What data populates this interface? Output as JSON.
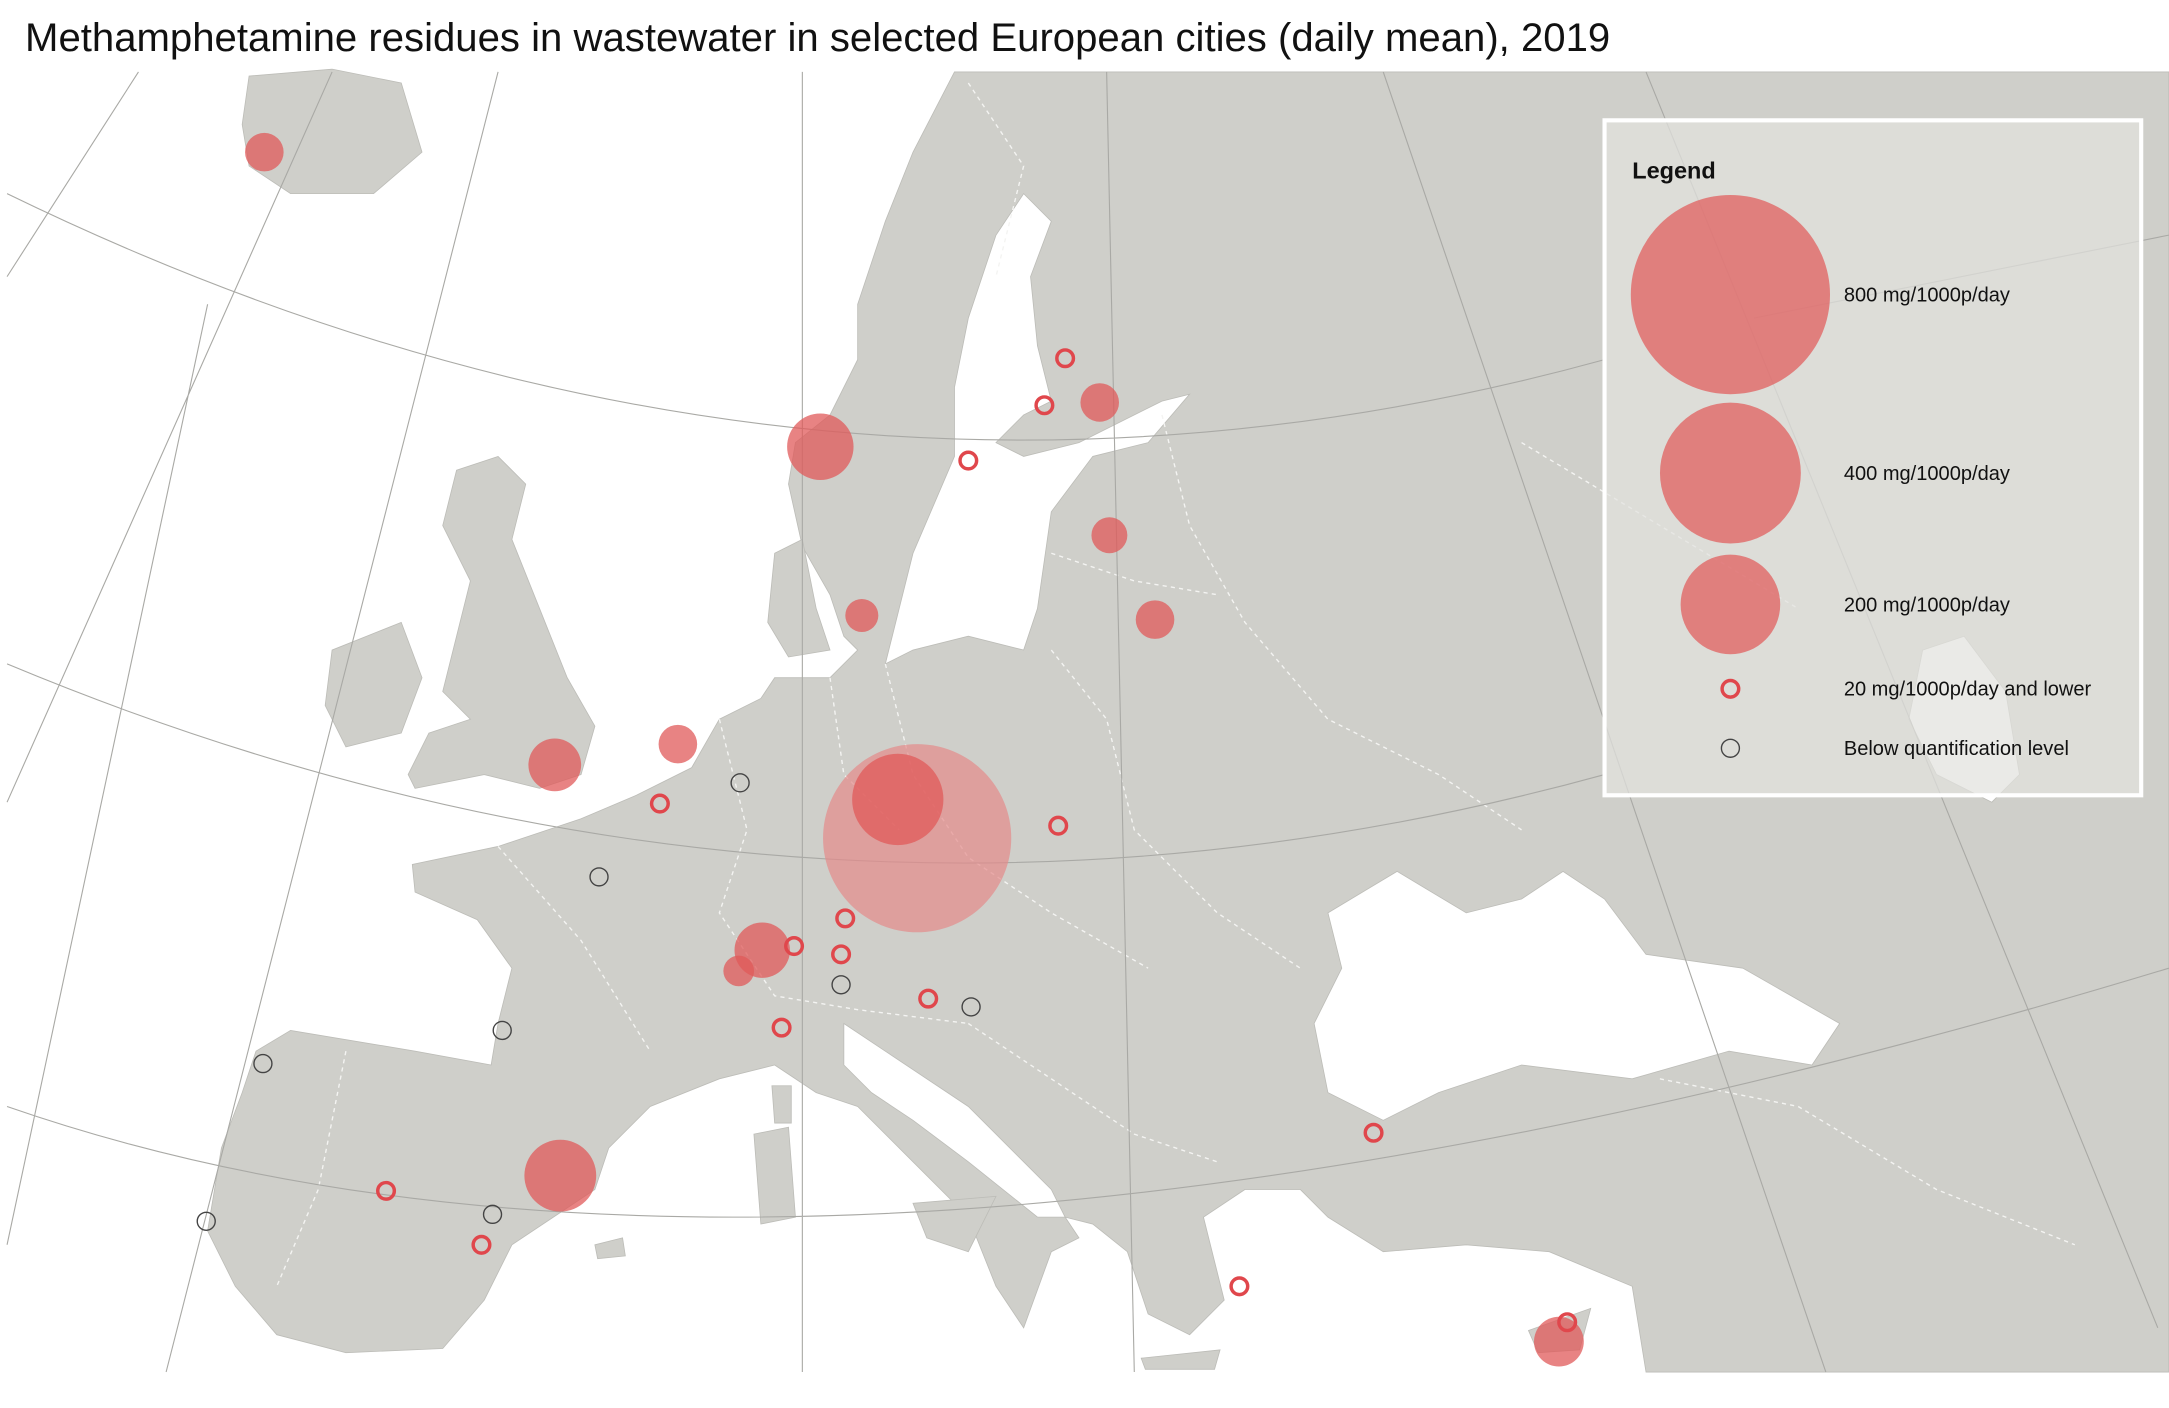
{
  "title": "Methamphetamine residues in wastewater in selected European cities (daily mean), 2019",
  "legend": {
    "title": "Legend",
    "entries": [
      {
        "value": 800,
        "label": "800 mg/1000p/day"
      },
      {
        "value": 400,
        "label": "400 mg/1000p/day"
      },
      {
        "value": 200,
        "label": "200 mg/1000p/day"
      },
      {
        "label": "20 mg/1000p/day and lower"
      },
      {
        "label": "Below quantification level"
      }
    ]
  },
  "markers": [
    {
      "value": 30
    },
    {
      "value": 89
    },
    {
      "value": 30
    },
    {
      "value": 26
    },
    {
      "value": 30
    },
    {
      "value": 22
    },
    {
      "value": 56
    },
    {
      "value": 30
    },
    {
      "value": 714
    },
    {
      "value": 168
    },
    {
      "value": 62
    },
    {
      "value": 19
    },
    {
      "value": 104
    },
    {
      "value": 50
    },
    {
      "legend": 3
    },
    {
      "legend": 3
    },
    {
      "legend": 3
    },
    {
      "legend": 3
    },
    {
      "legend": 3
    },
    {
      "legend": 3
    },
    {
      "legend": 3
    },
    {
      "legend": 3
    },
    {
      "legend": 3
    },
    {
      "legend": 3
    },
    {
      "legend": 3
    },
    {
      "legend": 3
    },
    {
      "legend": 3
    },
    {
      "legend": 3
    },
    {
      "legend": 3
    },
    {
      "legend": 4
    },
    {
      "legend": 4
    },
    {
      "legend": 4
    },
    {
      "legend": 4
    },
    {
      "legend": 4
    },
    {
      "legend": 4
    },
    {
      "legend": 4
    },
    {
      "legend": 4
    }
  ]
}
